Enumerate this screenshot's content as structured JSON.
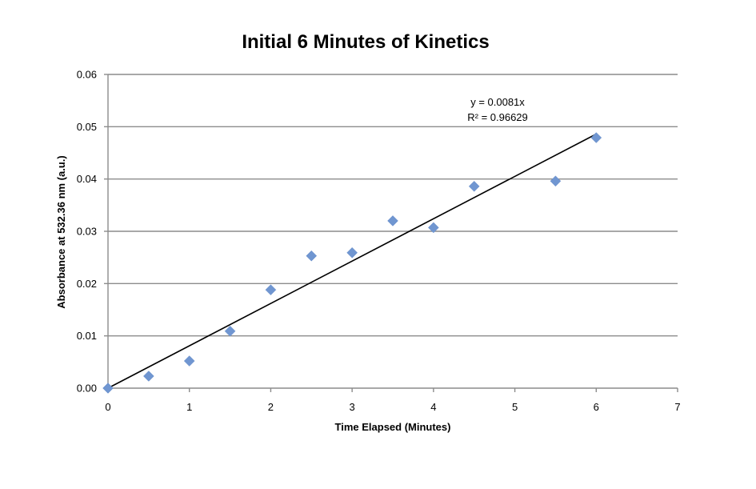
{
  "chart_data": {
    "type": "scatter",
    "title": "Initial 6 Minutes of Kinetics",
    "xlabel": "Time Elapsed (Minutes)",
    "ylabel": "Absorbance at 532.36 nm (a.u.)",
    "xlim": [
      0,
      7
    ],
    "ylim": [
      0,
      0.06
    ],
    "xticks": [
      "0",
      "1",
      "2",
      "3",
      "4",
      "5",
      "6",
      "7"
    ],
    "yticks": [
      "0.00",
      "0.01",
      "0.02",
      "0.03",
      "0.04",
      "0.05",
      "0.06"
    ],
    "grid": "horizontal",
    "legend": "none",
    "series": [
      {
        "color": "#7096d1",
        "marker": "diamond",
        "x": [
          0,
          0.5,
          1,
          1.5,
          2,
          2.5,
          3,
          3.5,
          4,
          4.5,
          5.5,
          6
        ],
        "y": [
          0.0,
          0.0023,
          0.0052,
          0.0109,
          0.0188,
          0.0253,
          0.0259,
          0.032,
          0.0307,
          0.0386,
          0.0396,
          0.0479
        ]
      }
    ],
    "trendline": {
      "slope": 0.0081,
      "intercept": 0,
      "x_range": [
        0,
        6
      ],
      "equation_label": "y = 0.0081x",
      "r2_label": "R² = 0.96629",
      "color": "#000000"
    }
  }
}
